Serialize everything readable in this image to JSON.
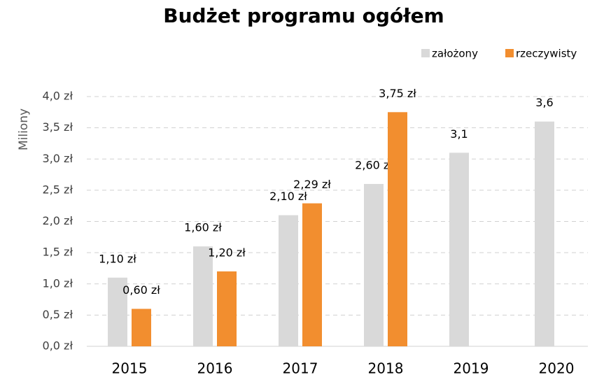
{
  "chart_data": {
    "type": "bar",
    "title": "Budżet programu ogółem",
    "y_label": "Miliony",
    "categories": [
      "2015",
      "2016",
      "2017",
      "2018",
      "2019",
      "2020"
    ],
    "series": [
      {
        "name": "założony",
        "color": "#d9d9d9",
        "values": [
          1.1,
          1.6,
          2.1,
          2.6,
          3.1,
          3.6
        ],
        "value_labels": [
          "1,10 zł",
          "1,60 zł",
          "2,10 zł",
          "2,60 zł",
          "3,1",
          "3,6"
        ]
      },
      {
        "name": "rzeczywisty",
        "color": "#f28e2f",
        "values": [
          0.6,
          1.2,
          2.29,
          3.75,
          null,
          null
        ],
        "value_labels": [
          "0,60 zł",
          "1,20 zł",
          "2,29 zł",
          "3,75 zł",
          null,
          null
        ]
      }
    ],
    "ylim": [
      0,
      4
    ],
    "yticks": [
      {
        "value": 0,
        "label": "0,0 zł"
      },
      {
        "value": 0.5,
        "label": "0,5 zł"
      },
      {
        "value": 1,
        "label": "1,0 zł"
      },
      {
        "value": 1.5,
        "label": "1,5 zł"
      },
      {
        "value": 2,
        "label": "2,0 zł"
      },
      {
        "value": 2.5,
        "label": "2,5 zł"
      },
      {
        "value": 3,
        "label": "3,0 zł"
      },
      {
        "value": 3.5,
        "label": "3,5 zł"
      },
      {
        "value": 4,
        "label": "4,0 zł"
      }
    ],
    "grid": true,
    "legend": "top-right"
  }
}
